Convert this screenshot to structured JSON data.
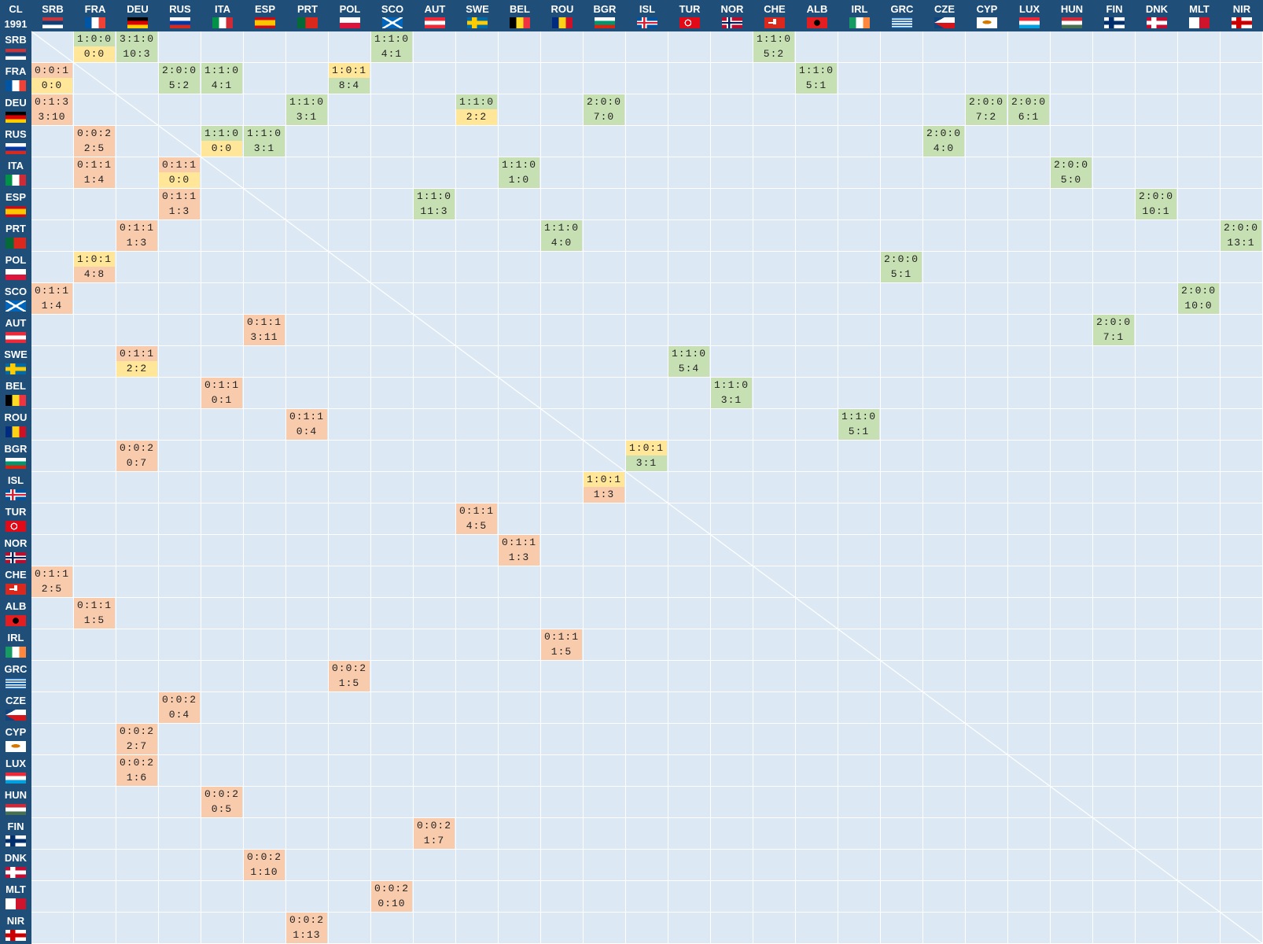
{
  "corner": {
    "label": "CL",
    "year": "1991"
  },
  "colors": {
    "header_bg": "#1f4e79",
    "cell_bg": "#dce9f5",
    "win": "#c6e0b4",
    "loss": "#f8cbad",
    "draw": "#ffe699"
  },
  "teams": [
    "SRB",
    "FRA",
    "DEU",
    "RUS",
    "ITA",
    "ESP",
    "PRT",
    "POL",
    "SCO",
    "AUT",
    "SWE",
    "BEL",
    "ROU",
    "BGR",
    "ISL",
    "TUR",
    "NOR",
    "CHE",
    "ALB",
    "IRL",
    "GRC",
    "CZE",
    "CYP",
    "LUX",
    "HUN",
    "FIN",
    "DNK",
    "MLT",
    "NIR"
  ],
  "results": [
    {
      "team": "SRB",
      "opponent": "FRA",
      "record": "1:0:0",
      "score": "0:0"
    },
    {
      "team": "SRB",
      "opponent": "DEU",
      "record": "3:1:0",
      "score": "10:3"
    },
    {
      "team": "SRB",
      "opponent": "SCO",
      "record": "1:1:0",
      "score": "4:1"
    },
    {
      "team": "SRB",
      "opponent": "CHE",
      "record": "1:1:0",
      "score": "5:2"
    },
    {
      "team": "FRA",
      "opponent": "SRB",
      "record": "0:0:1",
      "score": "0:0"
    },
    {
      "team": "FRA",
      "opponent": "RUS",
      "record": "2:0:0",
      "score": "5:2"
    },
    {
      "team": "FRA",
      "opponent": "ITA",
      "record": "1:1:0",
      "score": "4:1"
    },
    {
      "team": "FRA",
      "opponent": "POL",
      "record": "1:0:1",
      "score": "8:4"
    },
    {
      "team": "FRA",
      "opponent": "ALB",
      "record": "1:1:0",
      "score": "5:1"
    },
    {
      "team": "DEU",
      "opponent": "SRB",
      "record": "0:1:3",
      "score": "3:10"
    },
    {
      "team": "DEU",
      "opponent": "PRT",
      "record": "1:1:0",
      "score": "3:1"
    },
    {
      "team": "DEU",
      "opponent": "SWE",
      "record": "1:1:0",
      "score": "2:2"
    },
    {
      "team": "DEU",
      "opponent": "BGR",
      "record": "2:0:0",
      "score": "7:0"
    },
    {
      "team": "DEU",
      "opponent": "CYP",
      "record": "2:0:0",
      "score": "7:2"
    },
    {
      "team": "DEU",
      "opponent": "LUX",
      "record": "2:0:0",
      "score": "6:1"
    },
    {
      "team": "RUS",
      "opponent": "FRA",
      "record": "0:0:2",
      "score": "2:5"
    },
    {
      "team": "RUS",
      "opponent": "ITA",
      "record": "1:1:0",
      "score": "0:0"
    },
    {
      "team": "RUS",
      "opponent": "ESP",
      "record": "1:1:0",
      "score": "3:1"
    },
    {
      "team": "RUS",
      "opponent": "CZE",
      "record": "2:0:0",
      "score": "4:0"
    },
    {
      "team": "ITA",
      "opponent": "FRA",
      "record": "0:1:1",
      "score": "1:4"
    },
    {
      "team": "ITA",
      "opponent": "RUS",
      "record": "0:1:1",
      "score": "0:0"
    },
    {
      "team": "ITA",
      "opponent": "BEL",
      "record": "1:1:0",
      "score": "1:0"
    },
    {
      "team": "ITA",
      "opponent": "HUN",
      "record": "2:0:0",
      "score": "5:0"
    },
    {
      "team": "ESP",
      "opponent": "RUS",
      "record": "0:1:1",
      "score": "1:3"
    },
    {
      "team": "ESP",
      "opponent": "AUT",
      "record": "1:1:0",
      "score": "11:3"
    },
    {
      "team": "ESP",
      "opponent": "DNK",
      "record": "2:0:0",
      "score": "10:1"
    },
    {
      "team": "PRT",
      "opponent": "DEU",
      "record": "0:1:1",
      "score": "1:3"
    },
    {
      "team": "PRT",
      "opponent": "ROU",
      "record": "1:1:0",
      "score": "4:0"
    },
    {
      "team": "PRT",
      "opponent": "NIR",
      "record": "2:0:0",
      "score": "13:1"
    },
    {
      "team": "POL",
      "opponent": "FRA",
      "record": "1:0:1",
      "score": "4:8"
    },
    {
      "team": "POL",
      "opponent": "GRC",
      "record": "2:0:0",
      "score": "5:1"
    },
    {
      "team": "SCO",
      "opponent": "SRB",
      "record": "0:1:1",
      "score": "1:4"
    },
    {
      "team": "SCO",
      "opponent": "MLT",
      "record": "2:0:0",
      "score": "10:0"
    },
    {
      "team": "AUT",
      "opponent": "ESP",
      "record": "0:1:1",
      "score": "3:11"
    },
    {
      "team": "AUT",
      "opponent": "FIN",
      "record": "2:0:0",
      "score": "7:1"
    },
    {
      "team": "SWE",
      "opponent": "DEU",
      "record": "0:1:1",
      "score": "2:2"
    },
    {
      "team": "SWE",
      "opponent": "TUR",
      "record": "1:1:0",
      "score": "5:4"
    },
    {
      "team": "BEL",
      "opponent": "ITA",
      "record": "0:1:1",
      "score": "0:1"
    },
    {
      "team": "BEL",
      "opponent": "NOR",
      "record": "1:1:0",
      "score": "3:1"
    },
    {
      "team": "ROU",
      "opponent": "PRT",
      "record": "0:1:1",
      "score": "0:4"
    },
    {
      "team": "ROU",
      "opponent": "IRL",
      "record": "1:1:0",
      "score": "5:1"
    },
    {
      "team": "BGR",
      "opponent": "DEU",
      "record": "0:0:2",
      "score": "0:7"
    },
    {
      "team": "BGR",
      "opponent": "ISL",
      "record": "1:0:1",
      "score": "3:1"
    },
    {
      "team": "ISL",
      "opponent": "BGR",
      "record": "1:0:1",
      "score": "1:3"
    },
    {
      "team": "TUR",
      "opponent": "SWE",
      "record": "0:1:1",
      "score": "4:5"
    },
    {
      "team": "NOR",
      "opponent": "BEL",
      "record": "0:1:1",
      "score": "1:3"
    },
    {
      "team": "CHE",
      "opponent": "SRB",
      "record": "0:1:1",
      "score": "2:5"
    },
    {
      "team": "ALB",
      "opponent": "FRA",
      "record": "0:1:1",
      "score": "1:5"
    },
    {
      "team": "IRL",
      "opponent": "ROU",
      "record": "0:1:1",
      "score": "1:5"
    },
    {
      "team": "GRC",
      "opponent": "POL",
      "record": "0:0:2",
      "score": "1:5"
    },
    {
      "team": "CZE",
      "opponent": "RUS",
      "record": "0:0:2",
      "score": "0:4"
    },
    {
      "team": "CYP",
      "opponent": "DEU",
      "record": "0:0:2",
      "score": "2:7"
    },
    {
      "team": "LUX",
      "opponent": "DEU",
      "record": "0:0:2",
      "score": "1:6"
    },
    {
      "team": "HUN",
      "opponent": "ITA",
      "record": "0:0:2",
      "score": "0:5"
    },
    {
      "team": "FIN",
      "opponent": "AUT",
      "record": "0:0:2",
      "score": "1:7"
    },
    {
      "team": "DNK",
      "opponent": "ESP",
      "record": "0:0:2",
      "score": "1:10"
    },
    {
      "team": "MLT",
      "opponent": "SCO",
      "record": "0:0:2",
      "score": "0:10"
    },
    {
      "team": "NIR",
      "opponent": "PRT",
      "record": "0:0:2",
      "score": "1:13"
    }
  ]
}
